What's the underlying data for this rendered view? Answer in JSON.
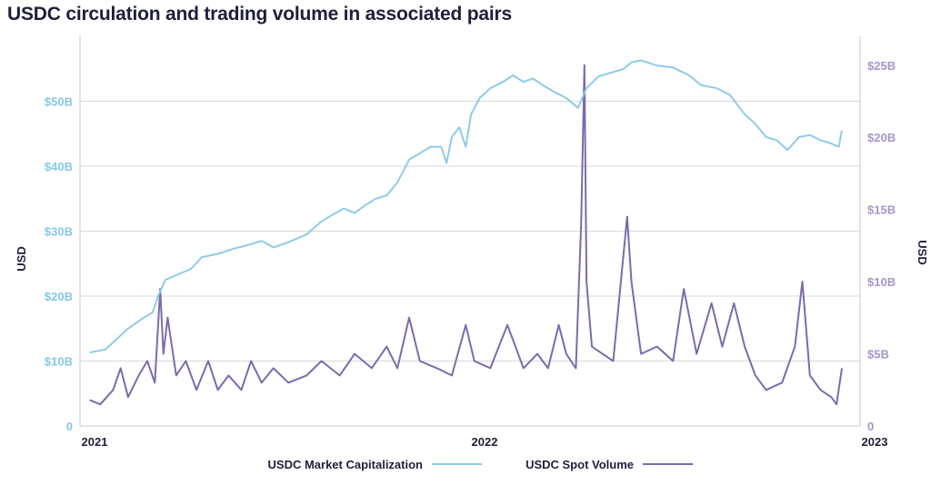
{
  "title": "USDC circulation and trading volume in associated pairs",
  "chart_data": {
    "type": "line",
    "title": "USDC circulation and trading volume in associated pairs",
    "ylabel_left": "USD",
    "ylabel_right": "USD",
    "x_ticks": [
      "2021",
      "2022",
      "2023"
    ],
    "x_range": [
      "2021-01-01",
      "2023-01-01"
    ],
    "y_left": {
      "range": [
        0,
        60000000000
      ],
      "ticks": [
        "0",
        "$10B",
        "$20B",
        "$30B",
        "$40B",
        "$50B"
      ],
      "tick_values": [
        0,
        10,
        20,
        30,
        40,
        50
      ],
      "unit": "billion USD"
    },
    "y_right": {
      "range": [
        0,
        27000000000
      ],
      "ticks": [
        "0",
        "$5B",
        "$10B",
        "$15B",
        "$20B",
        "$25B"
      ],
      "tick_values": [
        0,
        5,
        10,
        15,
        20,
        25
      ],
      "unit": "billion USD"
    },
    "grid": "horizontal",
    "legend": "bottom",
    "colors": {
      "market_cap": "#8fcbe8",
      "spot_volume": "#7d6aac"
    },
    "series": [
      {
        "name": "USDC Market Capitalization",
        "axis": "left",
        "unit": "billion USD",
        "points": [
          [
            "2021-01-10",
            11.3
          ],
          [
            "2021-01-25",
            11.8
          ],
          [
            "2021-02-05",
            13.5
          ],
          [
            "2021-02-15",
            15.0
          ],
          [
            "2021-02-28",
            16.5
          ],
          [
            "2021-03-10",
            17.5
          ],
          [
            "2021-03-15",
            20.0
          ],
          [
            "2021-03-22",
            22.5
          ],
          [
            "2021-04-05",
            23.5
          ],
          [
            "2021-04-15",
            24.2
          ],
          [
            "2021-04-25",
            26.0
          ],
          [
            "2021-05-10",
            26.5
          ],
          [
            "2021-05-25",
            27.3
          ],
          [
            "2021-06-10",
            28.0
          ],
          [
            "2021-06-20",
            28.5
          ],
          [
            "2021-07-01",
            27.5
          ],
          [
            "2021-07-15",
            28.3
          ],
          [
            "2021-08-01",
            29.5
          ],
          [
            "2021-08-15",
            31.5
          ],
          [
            "2021-08-25",
            32.5
          ],
          [
            "2021-09-05",
            33.5
          ],
          [
            "2021-09-15",
            32.8
          ],
          [
            "2021-09-25",
            34.0
          ],
          [
            "2021-10-05",
            35.0
          ],
          [
            "2021-10-15",
            35.5
          ],
          [
            "2021-10-25",
            37.5
          ],
          [
            "2021-11-05",
            41.0
          ],
          [
            "2021-11-15",
            42.0
          ],
          [
            "2021-11-25",
            43.0
          ],
          [
            "2021-12-05",
            43.0
          ],
          [
            "2021-12-10",
            40.5
          ],
          [
            "2021-12-15",
            44.5
          ],
          [
            "2021-12-22",
            46.0
          ],
          [
            "2021-12-28",
            43.0
          ],
          [
            "2022-01-02",
            48.0
          ],
          [
            "2022-01-10",
            50.5
          ],
          [
            "2022-01-20",
            52.0
          ],
          [
            "2022-02-01",
            53.0
          ],
          [
            "2022-02-10",
            54.0
          ],
          [
            "2022-02-20",
            53.0
          ],
          [
            "2022-03-01",
            53.5
          ],
          [
            "2022-03-10",
            52.5
          ],
          [
            "2022-03-20",
            51.5
          ],
          [
            "2022-04-01",
            50.5
          ],
          [
            "2022-04-12",
            49.0
          ],
          [
            "2022-04-20",
            52.0
          ],
          [
            "2022-05-01",
            53.8
          ],
          [
            "2022-05-15",
            54.5
          ],
          [
            "2022-05-25",
            55.0
          ],
          [
            "2022-06-01",
            56.0
          ],
          [
            "2022-06-10",
            56.3
          ],
          [
            "2022-06-25",
            55.5
          ],
          [
            "2022-07-10",
            55.2
          ],
          [
            "2022-07-25",
            54.0
          ],
          [
            "2022-08-05",
            52.5
          ],
          [
            "2022-08-20",
            52.0
          ],
          [
            "2022-09-01",
            51.0
          ],
          [
            "2022-09-15",
            48.0
          ],
          [
            "2022-09-25",
            46.5
          ],
          [
            "2022-10-05",
            44.5
          ],
          [
            "2022-10-15",
            44.0
          ],
          [
            "2022-10-25",
            42.5
          ],
          [
            "2022-11-05",
            44.5
          ],
          [
            "2022-11-15",
            44.8
          ],
          [
            "2022-11-25",
            44.0
          ],
          [
            "2022-12-05",
            43.5
          ],
          [
            "2022-12-12",
            43.0
          ],
          [
            "2022-12-15",
            45.5
          ]
        ]
      },
      {
        "name": "USDC Spot Volume",
        "axis": "right",
        "unit": "billion USD",
        "points": [
          [
            "2021-01-10",
            1.8
          ],
          [
            "2021-01-20",
            1.5
          ],
          [
            "2021-02-01",
            2.5
          ],
          [
            "2021-02-08",
            4.0
          ],
          [
            "2021-02-15",
            2.0
          ],
          [
            "2021-02-25",
            3.5
          ],
          [
            "2021-03-05",
            4.5
          ],
          [
            "2021-03-12",
            3.0
          ],
          [
            "2021-03-17",
            9.5
          ],
          [
            "2021-03-20",
            5.0
          ],
          [
            "2021-03-24",
            7.5
          ],
          [
            "2021-04-01",
            3.5
          ],
          [
            "2021-04-10",
            4.5
          ],
          [
            "2021-04-20",
            2.5
          ],
          [
            "2021-05-01",
            4.5
          ],
          [
            "2021-05-10",
            2.5
          ],
          [
            "2021-05-20",
            3.5
          ],
          [
            "2021-06-01",
            2.5
          ],
          [
            "2021-06-10",
            4.5
          ],
          [
            "2021-06-20",
            3.0
          ],
          [
            "2021-07-01",
            4.0
          ],
          [
            "2021-07-15",
            3.0
          ],
          [
            "2021-08-01",
            3.5
          ],
          [
            "2021-08-15",
            4.5
          ],
          [
            "2021-09-01",
            3.5
          ],
          [
            "2021-09-15",
            5.0
          ],
          [
            "2021-10-01",
            4.0
          ],
          [
            "2021-10-15",
            5.5
          ],
          [
            "2021-10-25",
            4.0
          ],
          [
            "2021-11-05",
            7.5
          ],
          [
            "2021-11-15",
            4.5
          ],
          [
            "2021-12-01",
            4.0
          ],
          [
            "2021-12-15",
            3.5
          ],
          [
            "2021-12-28",
            7.0
          ],
          [
            "2022-01-05",
            4.5
          ],
          [
            "2022-01-20",
            4.0
          ],
          [
            "2022-02-05",
            7.0
          ],
          [
            "2022-02-20",
            4.0
          ],
          [
            "2022-03-05",
            5.0
          ],
          [
            "2022-03-15",
            4.0
          ],
          [
            "2022-03-25",
            7.0
          ],
          [
            "2022-04-01",
            5.0
          ],
          [
            "2022-04-10",
            4.0
          ],
          [
            "2022-04-15",
            14.0
          ],
          [
            "2022-04-18",
            25.0
          ],
          [
            "2022-04-20",
            10.0
          ],
          [
            "2022-04-25",
            5.5
          ],
          [
            "2022-05-05",
            5.0
          ],
          [
            "2022-05-15",
            4.5
          ],
          [
            "2022-05-28",
            14.5
          ],
          [
            "2022-06-01",
            10.0
          ],
          [
            "2022-06-10",
            5.0
          ],
          [
            "2022-06-25",
            5.5
          ],
          [
            "2022-07-10",
            4.5
          ],
          [
            "2022-07-20",
            9.5
          ],
          [
            "2022-08-01",
            5.0
          ],
          [
            "2022-08-15",
            8.5
          ],
          [
            "2022-08-25",
            5.5
          ],
          [
            "2022-09-05",
            8.5
          ],
          [
            "2022-09-15",
            5.5
          ],
          [
            "2022-09-25",
            3.5
          ],
          [
            "2022-10-05",
            2.5
          ],
          [
            "2022-10-20",
            3.0
          ],
          [
            "2022-11-01",
            5.5
          ],
          [
            "2022-11-08",
            10.0
          ],
          [
            "2022-11-15",
            3.5
          ],
          [
            "2022-11-25",
            2.5
          ],
          [
            "2022-12-05",
            2.0
          ],
          [
            "2022-12-10",
            1.5
          ],
          [
            "2022-12-15",
            4.0
          ]
        ]
      }
    ]
  }
}
